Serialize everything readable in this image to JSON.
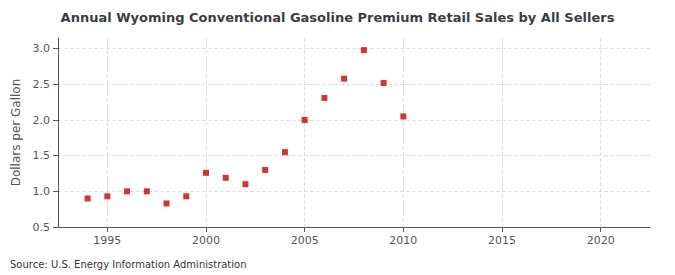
{
  "chart_data": {
    "type": "scatter",
    "title": "Annual Wyoming Conventional Gasoline Premium Retail Sales by All Sellers",
    "ylabel": "Dollars per Gallon",
    "source": "Source: U.S. Energy Information Administration",
    "x": [
      1994,
      1995,
      1996,
      1997,
      1998,
      1999,
      2000,
      2001,
      2002,
      2003,
      2004,
      2005,
      2006,
      2007,
      2008,
      2009,
      2010
    ],
    "values": [
      0.9,
      0.93,
      1.0,
      1.0,
      0.83,
      0.93,
      1.26,
      1.19,
      1.1,
      1.3,
      1.55,
      2.0,
      2.31,
      2.58,
      2.98,
      2.52,
      2.05
    ],
    "color": "#cc0000",
    "marker": "square",
    "xlim": [
      1992.5,
      2022.5
    ],
    "xticks": [
      1995,
      2000,
      2005,
      2010,
      2015,
      2020
    ],
    "ylim": [
      0.5,
      3.15
    ],
    "yticks": [
      0.5,
      {
        "value": 1.0,
        "label": "1.0"
      },
      1.5,
      {
        "value": 2.0,
        "label": "2.0"
      },
      2.5,
      {
        "value": 3.0,
        "label": "3.0"
      }
    ],
    "grid": true
  }
}
